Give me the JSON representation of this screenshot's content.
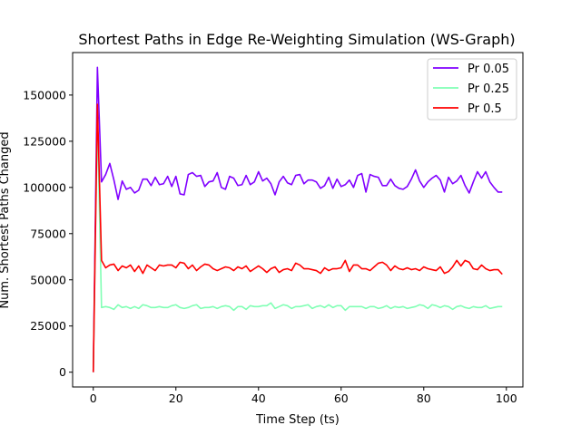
{
  "chart_data": {
    "type": "line",
    "title": "Shortest Paths in Edge Re-Weighting Simulation (WS-Graph)",
    "xlabel": "Time Step (ts)",
    "ylabel": "Num. Shortest Paths Changed",
    "xlim": [
      -5,
      104
    ],
    "ylim": [
      -8000,
      173000
    ],
    "xticks": [
      0,
      20,
      40,
      60,
      80,
      100
    ],
    "xtick_labels": [
      "0",
      "20",
      "40",
      "60",
      "80",
      "100"
    ],
    "yticks": [
      0,
      25000,
      50000,
      75000,
      100000,
      125000,
      150000
    ],
    "ytick_labels": [
      "0",
      "25000",
      "50000",
      "75000",
      "100000",
      "125000",
      "150000"
    ],
    "grid": false,
    "legend_placement": "top-right",
    "x": [
      0,
      1,
      2,
      3,
      4,
      5,
      6,
      7,
      8,
      9,
      10,
      11,
      12,
      13,
      14,
      15,
      16,
      17,
      18,
      19,
      20,
      21,
      22,
      23,
      24,
      25,
      26,
      27,
      28,
      29,
      30,
      31,
      32,
      33,
      34,
      35,
      36,
      37,
      38,
      39,
      40,
      41,
      42,
      43,
      44,
      45,
      46,
      47,
      48,
      49,
      50,
      51,
      52,
      53,
      54,
      55,
      56,
      57,
      58,
      59,
      60,
      61,
      62,
      63,
      64,
      65,
      66,
      67,
      68,
      69,
      70,
      71,
      72,
      73,
      74,
      75,
      76,
      77,
      78,
      79,
      80,
      81,
      82,
      83,
      84,
      85,
      86,
      87,
      88,
      89,
      90,
      91,
      92,
      93,
      94,
      95,
      96,
      97,
      98,
      99
    ],
    "series": [
      {
        "name": "Pr 0.05",
        "color": "#8000ff",
        "values": [
          0,
          165000,
          103000,
          107000,
          113000,
          104000,
          93500,
          103500,
          99000,
          100000,
          97000,
          98500,
          104500,
          104500,
          101000,
          105500,
          101500,
          102000,
          106000,
          100500,
          106000,
          96500,
          96000,
          107000,
          108000,
          106000,
          106500,
          100500,
          103000,
          103500,
          108000,
          100000,
          99000,
          106000,
          105000,
          101000,
          101500,
          106500,
          101500,
          103000,
          108500,
          103500,
          105000,
          102000,
          96000,
          103000,
          106000,
          102500,
          101500,
          106500,
          107000,
          102000,
          104000,
          104000,
          103000,
          99500,
          101000,
          105500,
          99500,
          104500,
          100500,
          101500,
          104000,
          100000,
          106500,
          107500,
          97500,
          107000,
          106000,
          105500,
          101000,
          101000,
          104500,
          101000,
          99500,
          99000,
          100500,
          104500,
          109500,
          103500,
          100000,
          103000,
          105000,
          106500,
          104000,
          97500,
          105500,
          102000,
          103500,
          106500,
          101000,
          97000,
          103000,
          108500,
          105000,
          108500,
          103000,
          100000,
          97500,
          97500
        ]
      },
      {
        "name": "Pr 0.25",
        "color": "#80ffb4",
        "values": [
          0,
          138000,
          35000,
          35500,
          35000,
          34000,
          36500,
          35000,
          35500,
          34500,
          35500,
          34500,
          36500,
          36000,
          35000,
          35000,
          35500,
          35000,
          35000,
          36000,
          36500,
          35000,
          34500,
          35000,
          36000,
          36500,
          34500,
          35000,
          35000,
          35500,
          34500,
          35500,
          36000,
          35500,
          33500,
          35500,
          35500,
          34000,
          36000,
          35500,
          35500,
          36000,
          36000,
          37500,
          34500,
          35500,
          36500,
          36000,
          34500,
          35500,
          35500,
          36000,
          36500,
          34500,
          35500,
          36000,
          35000,
          36500,
          35000,
          36000,
          36000,
          33500,
          35500,
          35500,
          35500,
          35500,
          34500,
          35500,
          35500,
          34500,
          35000,
          36000,
          34500,
          35500,
          35000,
          35500,
          34500,
          35000,
          35500,
          36500,
          36000,
          34500,
          36500,
          36000,
          35000,
          36000,
          35500,
          34000,
          35500,
          36000,
          35000,
          34500,
          35500,
          35000,
          35000,
          36000,
          34500,
          35000,
          35500,
          35500
        ]
      },
      {
        "name": "Pr 0.5",
        "color": "#ff0000",
        "values": [
          0,
          145000,
          60500,
          56500,
          58000,
          58500,
          55000,
          57500,
          56500,
          58000,
          54500,
          57500,
          53500,
          58000,
          56500,
          55000,
          58000,
          57500,
          58000,
          58000,
          56500,
          59500,
          59000,
          56000,
          58000,
          55000,
          57000,
          58500,
          58000,
          56000,
          55000,
          56000,
          57000,
          56500,
          55000,
          57000,
          56000,
          57500,
          54500,
          56000,
          57500,
          56000,
          54000,
          56000,
          57000,
          54000,
          55500,
          56000,
          55000,
          59000,
          58000,
          56000,
          56000,
          55500,
          55000,
          53500,
          56500,
          55000,
          56000,
          56000,
          56500,
          60500,
          54500,
          58000,
          58000,
          56000,
          56000,
          55000,
          57000,
          59000,
          59500,
          58000,
          55000,
          57500,
          56000,
          55500,
          56500,
          55500,
          56000,
          55000,
          57000,
          56000,
          55500,
          55000,
          57000,
          53500,
          54500,
          57000,
          60500,
          57500,
          60500,
          59500,
          56000,
          55500,
          58000,
          56000,
          55000,
          55500,
          55500,
          53000
        ]
      }
    ]
  }
}
